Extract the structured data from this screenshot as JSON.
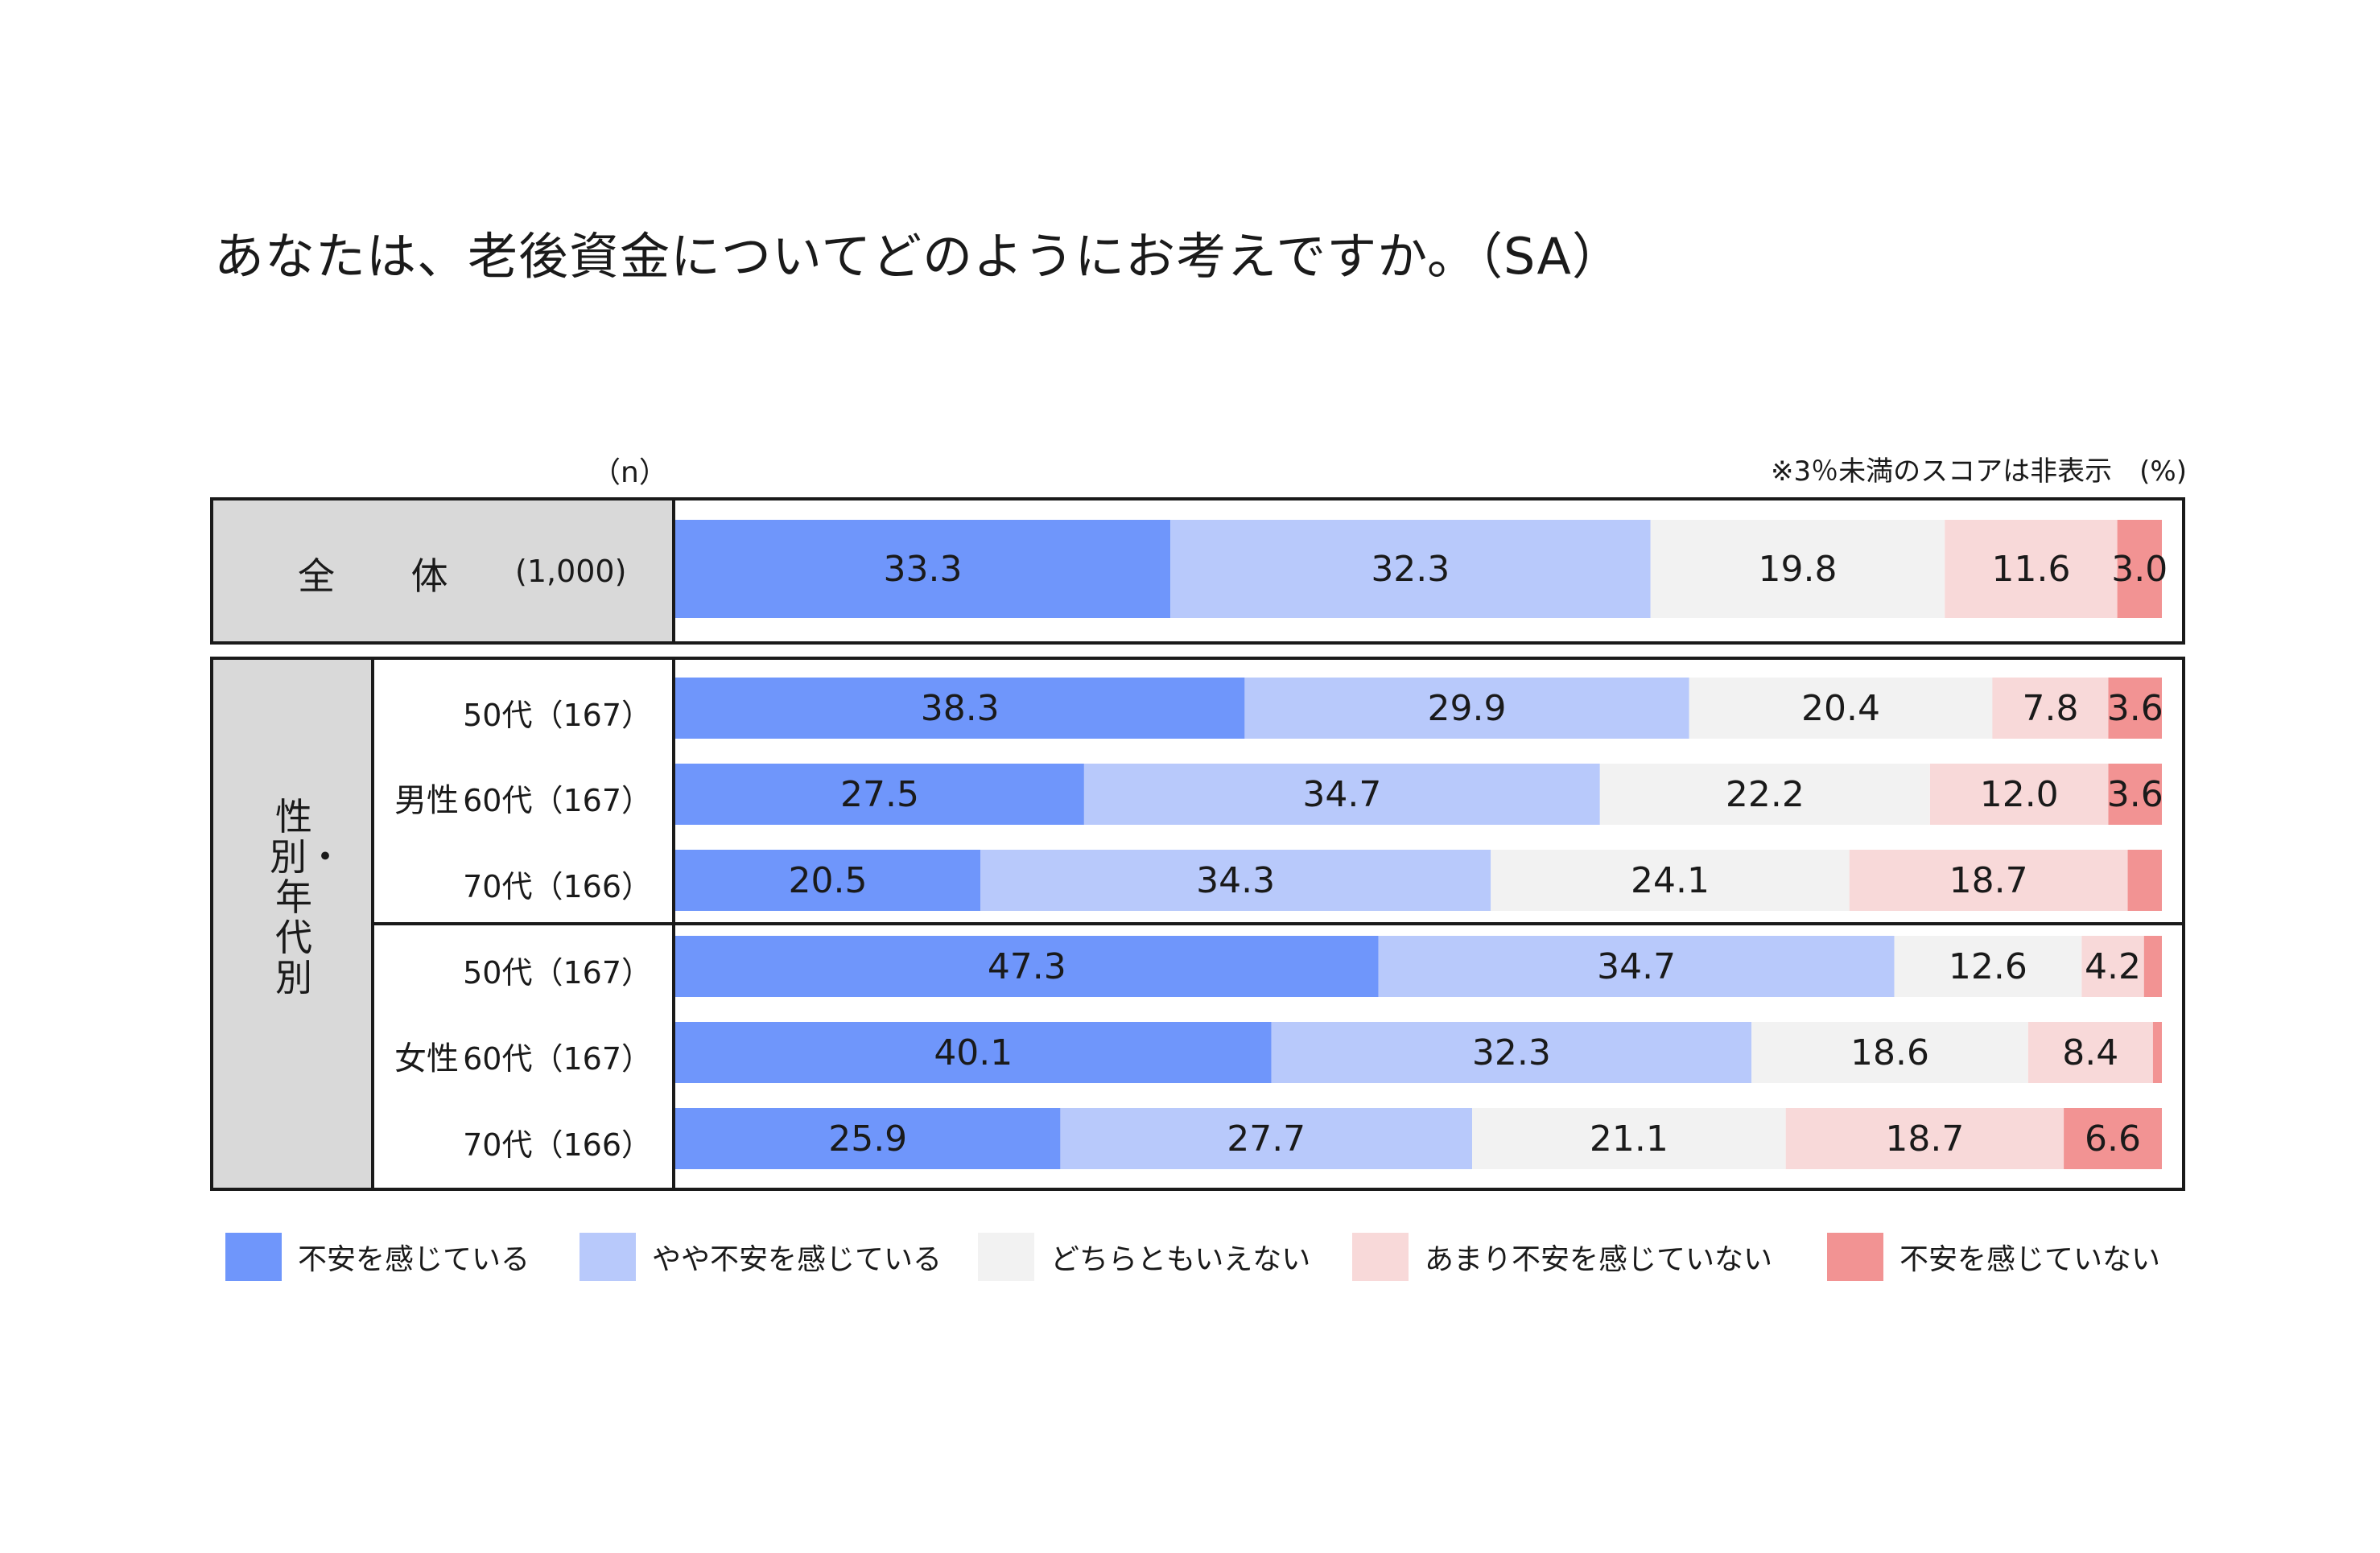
{
  "title": "あなたは、老後資金についてどのようにお考えですか。（SA）",
  "n_header": "（n）",
  "note": "※3％未満のスコアは非表示　(%)",
  "total_row": {
    "label": "全 体",
    "n": "(1,000)"
  },
  "segment_label": "性別・年代別",
  "genders": {
    "male": "男性",
    "female": "女性"
  },
  "rows": [
    {
      "label": "50代（167）"
    },
    {
      "label": "60代（167）"
    },
    {
      "label": "70代（166）"
    },
    {
      "label": "50代（167）"
    },
    {
      "label": "60代（167）"
    },
    {
      "label": "70代（166）"
    }
  ],
  "colors": [
    "#6f96fb",
    "#b8c9fb",
    "#f2f2f2",
    "#f8d9d9",
    "#f29393"
  ],
  "chart_data": {
    "type": "bar",
    "stacked": true,
    "orientation": "horizontal",
    "unit": "%",
    "label_threshold": 3,
    "series": [
      {
        "name": "不安を感じている"
      },
      {
        "name": "やや不安を感じている"
      },
      {
        "name": "どちらともいえない"
      },
      {
        "name": "あまり不安を感じていない"
      },
      {
        "name": "不安を感じていない"
      }
    ],
    "categories": [
      "全 体 (1,000)",
      "男性 50代（167）",
      "男性 60代（167）",
      "男性 70代（166）",
      "女性 50代（167）",
      "女性 60代（167）",
      "女性 70代（166）"
    ],
    "values": [
      [
        33.3,
        32.3,
        19.8,
        11.6,
        3.0
      ],
      [
        38.3,
        29.9,
        20.4,
        7.8,
        3.6
      ],
      [
        27.5,
        34.7,
        22.2,
        12.0,
        3.6
      ],
      [
        20.5,
        34.3,
        24.1,
        18.7,
        2.3
      ],
      [
        47.3,
        34.7,
        12.6,
        4.2,
        1.2
      ],
      [
        40.1,
        32.3,
        18.6,
        8.4,
        0.6
      ],
      [
        25.9,
        27.7,
        21.1,
        18.7,
        6.6
      ]
    ],
    "legend_position": "bottom"
  }
}
